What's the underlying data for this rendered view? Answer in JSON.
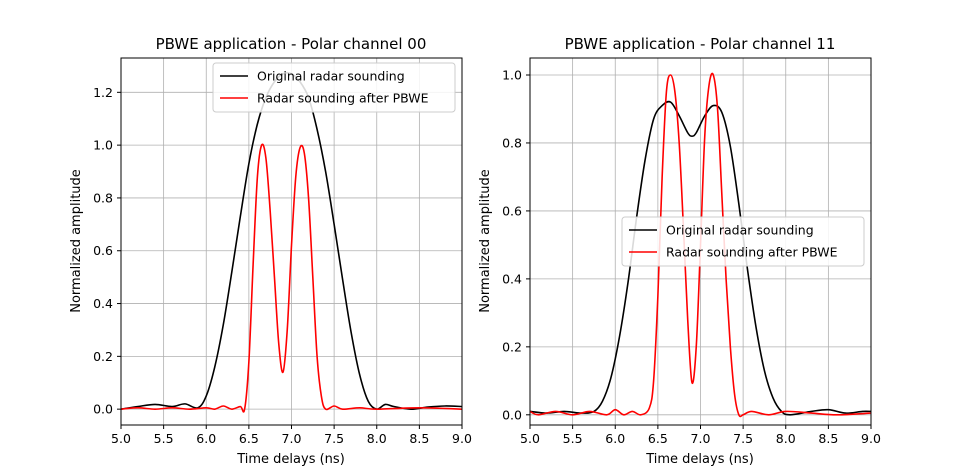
{
  "chart_data": [
    {
      "type": "line",
      "title": "PBWE application - Polar channel 00",
      "xlabel": "Time delays (ns)",
      "ylabel": "Normalized amplitude",
      "xlim": [
        5.0,
        9.0
      ],
      "ylim": [
        -0.06,
        1.33
      ],
      "xticks": [
        "5.0",
        "5.5",
        "6.0",
        "6.5",
        "7.0",
        "7.5",
        "8.0",
        "8.5",
        "9.0"
      ],
      "yticks": [
        "0.0",
        "0.2",
        "0.4",
        "0.6",
        "0.8",
        "1.0",
        "1.2"
      ],
      "grid": true,
      "legend_position": "top-right",
      "series": [
        {
          "name": "Original radar sounding",
          "color": "#000000",
          "x": [
            5.0,
            5.2,
            5.4,
            5.6,
            5.75,
            5.9,
            6.0,
            6.1,
            6.2,
            6.3,
            6.4,
            6.5,
            6.6,
            6.7,
            6.8,
            6.9,
            7.0,
            7.1,
            7.2,
            7.3,
            7.4,
            7.5,
            7.6,
            7.7,
            7.8,
            7.9,
            8.0,
            8.1,
            8.2,
            8.4,
            8.6,
            8.8,
            9.0
          ],
          "y": [
            0.0,
            0.01,
            0.018,
            0.01,
            0.02,
            0.005,
            0.05,
            0.16,
            0.32,
            0.52,
            0.73,
            0.93,
            1.08,
            1.18,
            1.24,
            1.27,
            1.27,
            1.24,
            1.18,
            1.06,
            0.9,
            0.7,
            0.49,
            0.29,
            0.13,
            0.03,
            0.0,
            0.018,
            0.01,
            0.0,
            0.008,
            0.012,
            0.01
          ]
        },
        {
          "name": "Radar sounding after PBWE",
          "color": "#ff0000",
          "x": [
            5.0,
            5.2,
            5.4,
            5.6,
            5.8,
            6.0,
            6.1,
            6.2,
            6.3,
            6.4,
            6.45,
            6.5,
            6.55,
            6.6,
            6.65,
            6.7,
            6.75,
            6.8,
            6.85,
            6.9,
            6.95,
            7.0,
            7.05,
            7.1,
            7.15,
            7.2,
            7.25,
            7.3,
            7.35,
            7.4,
            7.5,
            7.6,
            7.8,
            8.0,
            8.5,
            9.0
          ],
          "y": [
            0.0,
            0.005,
            0.0,
            0.005,
            0.0,
            0.005,
            0.0,
            0.012,
            0.0,
            0.01,
            0.0,
            0.18,
            0.55,
            0.88,
            1.0,
            0.95,
            0.75,
            0.5,
            0.25,
            0.14,
            0.3,
            0.62,
            0.88,
            0.99,
            0.97,
            0.8,
            0.5,
            0.2,
            0.05,
            0.0,
            0.012,
            0.0,
            0.005,
            0.0,
            0.005,
            0.0
          ]
        }
      ]
    },
    {
      "type": "line",
      "title": "PBWE application - Polar channel 11",
      "xlabel": "Time delays (ns)",
      "ylabel": "Normalized amplitude",
      "xlim": [
        5.0,
        9.0
      ],
      "ylim": [
        -0.03,
        1.05
      ],
      "xticks": [
        "5.0",
        "5.5",
        "6.0",
        "6.5",
        "7.0",
        "7.5",
        "8.0",
        "8.5",
        "9.0"
      ],
      "yticks": [
        "0.0",
        "0.2",
        "0.4",
        "0.6",
        "0.8",
        "1.0"
      ],
      "grid": true,
      "legend_position": "center-right",
      "series": [
        {
          "name": "Original radar sounding",
          "color": "#000000",
          "x": [
            5.0,
            5.2,
            5.4,
            5.6,
            5.75,
            5.85,
            5.95,
            6.05,
            6.15,
            6.25,
            6.35,
            6.45,
            6.55,
            6.65,
            6.75,
            6.85,
            6.9,
            6.95,
            7.05,
            7.15,
            7.25,
            7.35,
            7.45,
            7.55,
            7.65,
            7.75,
            7.85,
            7.95,
            8.05,
            8.3,
            8.5,
            8.7,
            8.9,
            9.0
          ],
          "y": [
            0.01,
            0.005,
            0.01,
            0.005,
            0.01,
            0.04,
            0.11,
            0.23,
            0.39,
            0.58,
            0.75,
            0.87,
            0.91,
            0.92,
            0.88,
            0.83,
            0.82,
            0.83,
            0.88,
            0.91,
            0.89,
            0.79,
            0.62,
            0.43,
            0.26,
            0.13,
            0.05,
            0.01,
            0.0,
            0.01,
            0.015,
            0.005,
            0.01,
            0.01
          ]
        },
        {
          "name": "Radar sounding after PBWE",
          "color": "#ff0000",
          "x": [
            5.0,
            5.1,
            5.3,
            5.5,
            5.7,
            5.9,
            6.0,
            6.1,
            6.2,
            6.3,
            6.4,
            6.45,
            6.5,
            6.55,
            6.6,
            6.65,
            6.7,
            6.75,
            6.8,
            6.85,
            6.9,
            6.95,
            7.0,
            7.05,
            7.1,
            7.15,
            7.2,
            7.25,
            7.3,
            7.35,
            7.4,
            7.45,
            7.5,
            7.6,
            7.8,
            8.0,
            8.3,
            8.6,
            9.0
          ],
          "y": [
            0.01,
            0.0,
            0.01,
            0.0,
            0.01,
            0.0,
            0.015,
            0.0,
            0.01,
            0.0,
            0.02,
            0.1,
            0.35,
            0.7,
            0.95,
            1.0,
            0.95,
            0.8,
            0.55,
            0.28,
            0.095,
            0.2,
            0.5,
            0.82,
            0.97,
            1.0,
            0.9,
            0.65,
            0.4,
            0.2,
            0.06,
            0.0,
            0.0,
            0.01,
            0.0,
            0.01,
            0.005,
            0.0,
            0.005
          ]
        }
      ]
    }
  ]
}
